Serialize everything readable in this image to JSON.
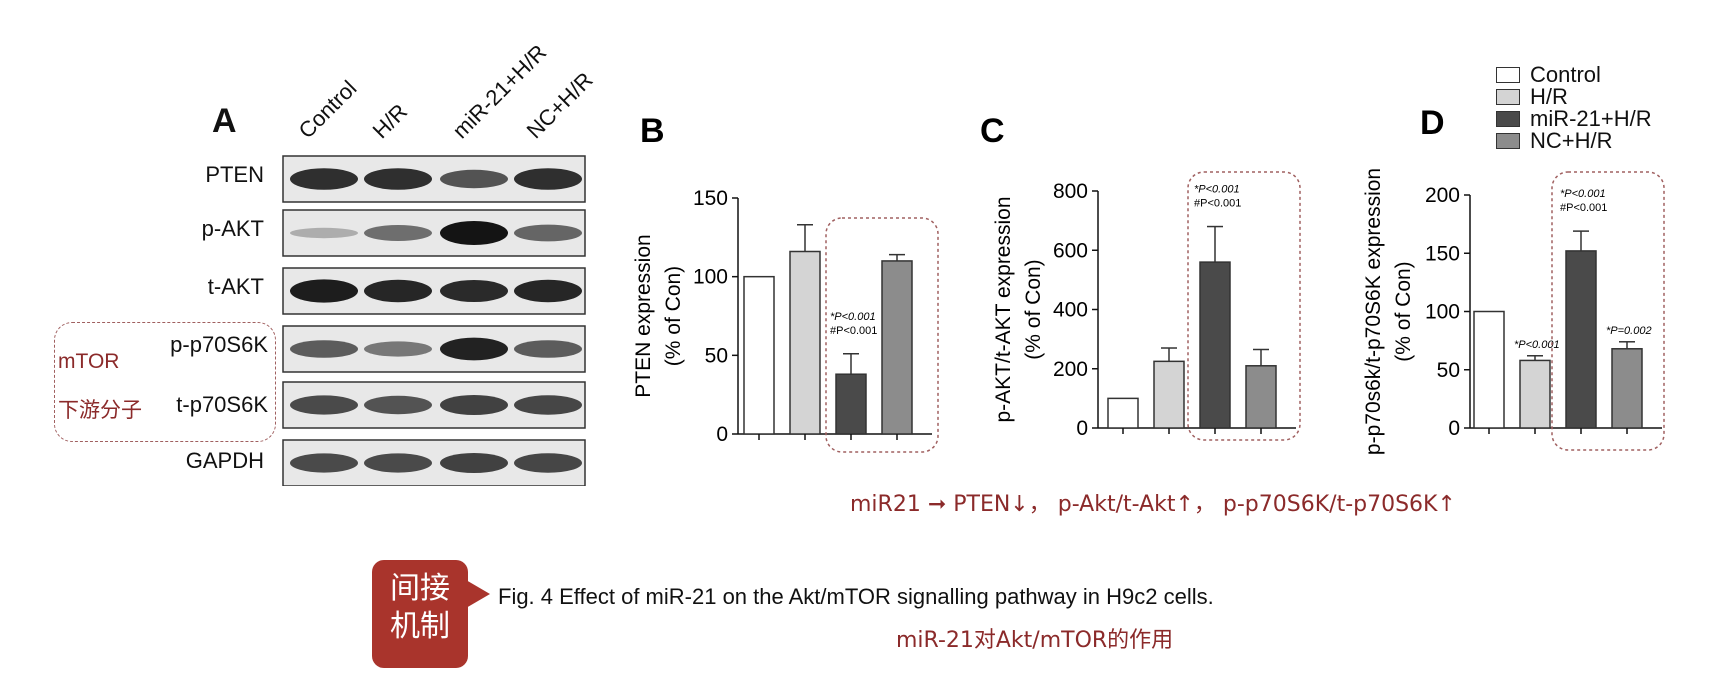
{
  "panel_a": {
    "letter": "A",
    "lanes": [
      "Control",
      "H/R",
      "miR-21+H/R",
      "NC+H/R"
    ],
    "proteins": [
      "PTEN",
      "p-AKT",
      "t-AKT",
      "p-p70S6K",
      "t-p70S6K",
      "GAPDH"
    ],
    "group_label_line1": "mTOR",
    "group_label_line2": "下游分子",
    "band_intensity": [
      [
        0.85,
        0.85,
        0.65,
        0.85
      ],
      [
        0.15,
        0.5,
        1.0,
        0.55
      ],
      [
        0.95,
        0.9,
        0.88,
        0.9
      ],
      [
        0.6,
        0.45,
        0.92,
        0.6
      ],
      [
        0.7,
        0.65,
        0.75,
        0.72
      ],
      [
        0.7,
        0.7,
        0.75,
        0.72
      ]
    ]
  },
  "legend": {
    "items": [
      {
        "label": "Control",
        "color": "#ffffff"
      },
      {
        "label": "H/R",
        "color": "#d4d4d4"
      },
      {
        "label": "miR-21+H/R",
        "color": "#4a4a4a"
      },
      {
        "label": "NC+H/R",
        "color": "#8c8c8c"
      }
    ]
  },
  "chart_data": [
    {
      "type": "bar",
      "panel": "B",
      "categories": [
        "Control",
        "H/R",
        "miR-21+H/R",
        "NC+H/R"
      ],
      "values": [
        100,
        116,
        38,
        110
      ],
      "errors": [
        0,
        17,
        13,
        4
      ],
      "colors": [
        "#ffffff",
        "#d4d4d4",
        "#4a4a4a",
        "#8c8c8c"
      ],
      "ylabel_line1": "PTEN  expression",
      "ylabel_line2": "(% of Con)",
      "ylim": [
        0,
        150
      ],
      "yticks": [
        "0",
        "50",
        "100",
        "150"
      ],
      "annotations": [
        {
          "bar": 2,
          "line1": "*P<0.001",
          "line2": "#P<0.001"
        }
      ],
      "highlight_bars": [
        2,
        3
      ]
    },
    {
      "type": "bar",
      "panel": "C",
      "categories": [
        "Control",
        "H/R",
        "miR-21+H/R",
        "NC+H/R"
      ],
      "values": [
        100,
        225,
        560,
        210
      ],
      "errors": [
        0,
        45,
        120,
        55
      ],
      "colors": [
        "#ffffff",
        "#d4d4d4",
        "#4a4a4a",
        "#8c8c8c"
      ],
      "ylabel_line1": "p-AKT/t-AKT expression",
      "ylabel_line2": "(% of Con)",
      "ylim": [
        0,
        800
      ],
      "yticks": [
        "0",
        "200",
        "400",
        "600",
        "800"
      ],
      "annotations": [
        {
          "bar": 2,
          "line1": "*P<0.001",
          "line2": "#P<0.001"
        }
      ],
      "highlight_bars": [
        2,
        3
      ]
    },
    {
      "type": "bar",
      "panel": "D",
      "categories": [
        "Control",
        "H/R",
        "miR-21+H/R",
        "NC+H/R"
      ],
      "values": [
        100,
        58,
        152,
        68
      ],
      "errors": [
        0,
        4,
        17,
        6
      ],
      "colors": [
        "#ffffff",
        "#d4d4d4",
        "#4a4a4a",
        "#8c8c8c"
      ],
      "ylabel_line1": "p-p70s6k/t-p70S6K expression",
      "ylabel_line2": "(% of Con)",
      "ylim": [
        0,
        200
      ],
      "yticks": [
        "0",
        "50",
        "100",
        "150",
        "200"
      ],
      "annotations": [
        {
          "bar": 1,
          "line1": "*P<0.001",
          "line2": ""
        },
        {
          "bar": 2,
          "line1": "*P<0.001",
          "line2": "#P<0.001"
        },
        {
          "bar": 3,
          "line1": "*P=0.002",
          "line2": ""
        }
      ],
      "highlight_bars": [
        2,
        3
      ]
    }
  ],
  "summary": "miR21  ➞  PTEN↓，  p-Akt/t-Akt↑，  p-p70S6K/t-p70S6K↑",
  "callout": {
    "line1": "间接",
    "line2": "机制"
  },
  "caption_en": "Fig. 4 Effect of miR-21 on the Akt/mTOR signalling pathway in H9c2 cells.",
  "caption_cn": "miR-21对Akt/mTOR的作用",
  "accent_red": "#8b2a2a"
}
